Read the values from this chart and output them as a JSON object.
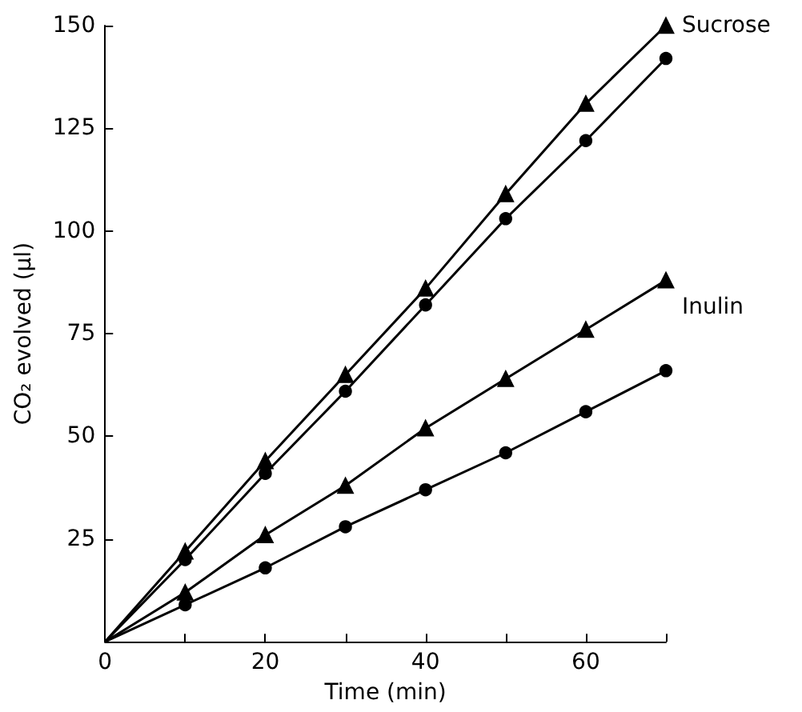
{
  "chart_data": {
    "type": "line",
    "xlabel": "Time (min)",
    "ylabel": "CO₂ evolved (µl)",
    "xlim": [
      0,
      70
    ],
    "ylim": [
      0,
      150
    ],
    "xticks": [
      0,
      {
        "value": 10,
        "label": null
      },
      20,
      {
        "value": 30,
        "label": null
      },
      40,
      {
        "value": 50,
        "label": null
      },
      60,
      {
        "value": 70,
        "label": null
      }
    ],
    "yticks": [
      25,
      50,
      75,
      100,
      125,
      150
    ],
    "grid": false,
    "line_style": "solid",
    "x": [
      0,
      10,
      20,
      30,
      40,
      50,
      60,
      70
    ],
    "series": [
      {
        "color": "#000000",
        "marker": "triangle",
        "values": [
          0,
          22,
          44,
          65,
          86,
          109,
          131,
          150
        ]
      },
      {
        "color": "#000000",
        "marker": "circle",
        "values": [
          0,
          20,
          41,
          61,
          82,
          103,
          122,
          142
        ]
      },
      {
        "color": "#000000",
        "marker": "triangle",
        "values": [
          0,
          12,
          26,
          38,
          52,
          64,
          76,
          88
        ]
      },
      {
        "color": "#000000",
        "marker": "circle",
        "values": [
          0,
          9,
          18,
          28,
          37,
          46,
          56,
          66
        ]
      }
    ],
    "annotations": [
      {
        "text": "Sucrose",
        "x": 70,
        "y": 150
      },
      "Inulin"
    ]
  }
}
